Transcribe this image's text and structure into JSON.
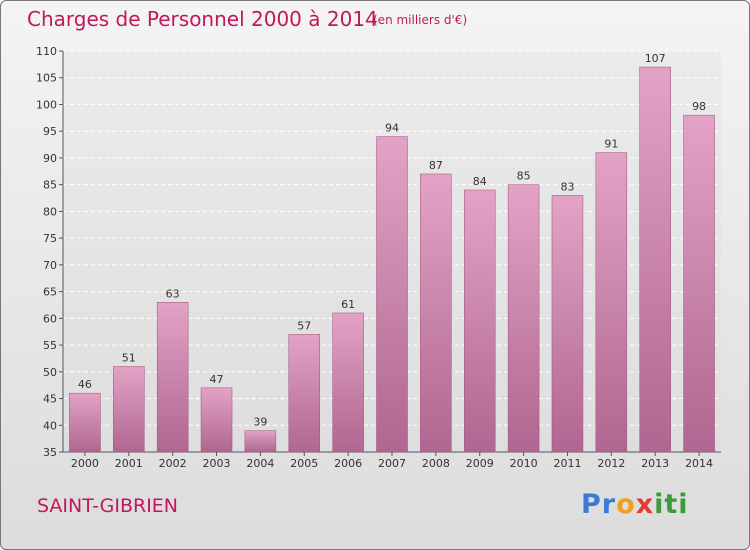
{
  "chart_data": {
    "type": "bar",
    "title": "Charges de Personnel 2000 à 2014",
    "subtitle": "(en milliers d'€)",
    "categories": [
      "2000",
      "2001",
      "2002",
      "2003",
      "2004",
      "2005",
      "2006",
      "2007",
      "2008",
      "2009",
      "2010",
      "2011",
      "2012",
      "2013",
      "2014"
    ],
    "values": [
      46,
      51,
      63,
      47,
      39,
      57,
      61,
      94,
      87,
      84,
      85,
      83,
      91,
      107,
      98
    ],
    "ylim": [
      35,
      110
    ],
    "yticks": [
      35,
      40,
      45,
      50,
      55,
      60,
      65,
      70,
      75,
      80,
      85,
      90,
      95,
      100,
      105,
      110
    ],
    "grid": true,
    "bar_color": "#c8719f"
  },
  "footer": {
    "city": "SAINT-GIBRIEN",
    "logo": [
      "P",
      "r",
      "o",
      "x",
      "i",
      "t",
      "i"
    ],
    "logo_colors": [
      "#3a7bd5",
      "#3a7bd5",
      "#f0a020",
      "#e53935",
      "#3a9d3a",
      "#3a9d3a",
      "#3a9d3a"
    ]
  }
}
